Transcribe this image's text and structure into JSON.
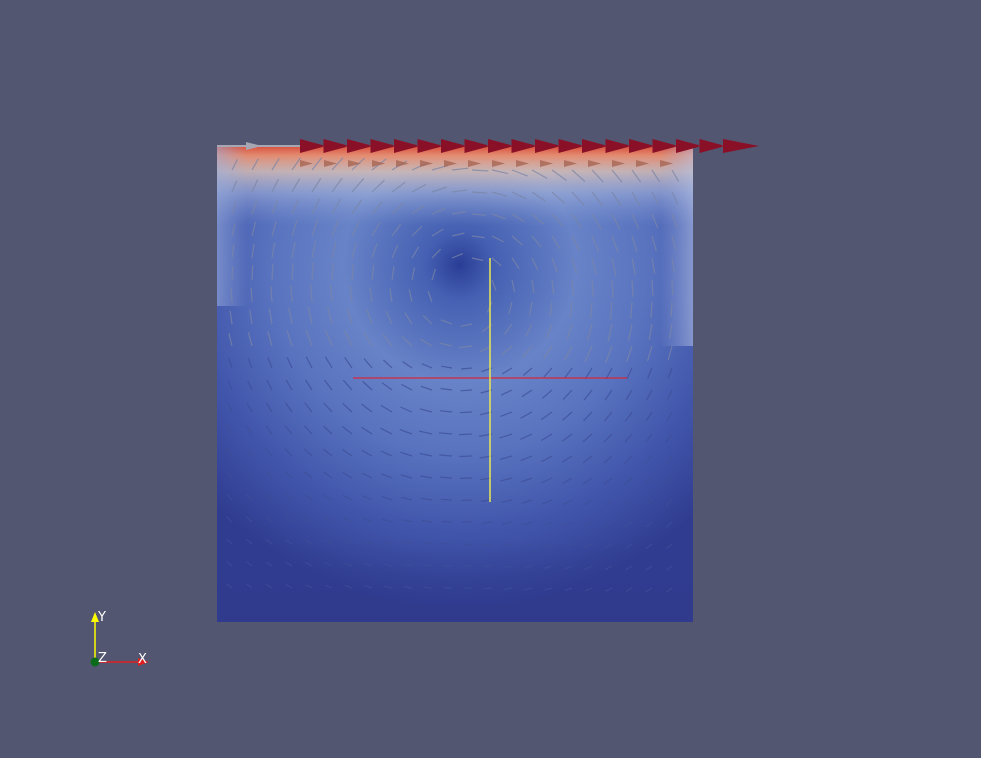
{
  "viewer": {
    "background_color": "#525670"
  },
  "scene": {
    "field_low_color": "#34408f",
    "field_mid_color": "#4a62b5",
    "field_high_color": "#e46e4e",
    "glyph_high_color": "#8a1027",
    "glyph_low_color": "#a7a7b3",
    "probe_line_x_color": "#d8273a",
    "probe_line_y_color": "#e8e853"
  },
  "orientation_axes": {
    "y_label": "Y",
    "z_label": "Z",
    "x_label": "X",
    "y_color": "#ffff00",
    "x_color": "#e02020",
    "z_color": "#0b6b1b"
  }
}
